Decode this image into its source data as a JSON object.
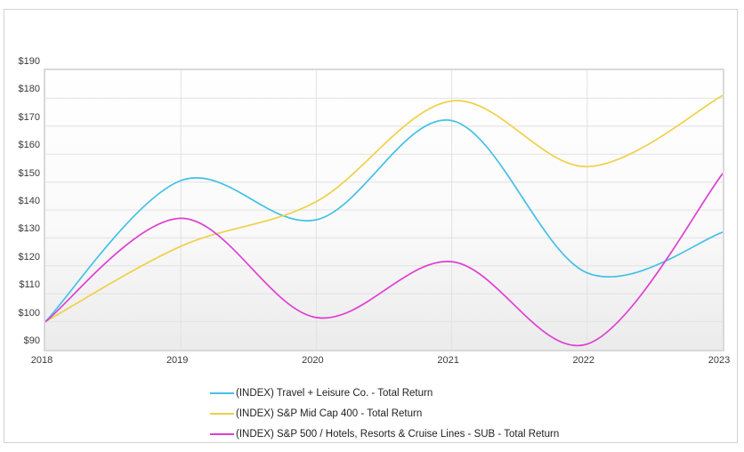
{
  "chart_data": {
    "type": "line",
    "x": [
      2018,
      2019,
      2020,
      2021,
      2022,
      2023
    ],
    "series": [
      {
        "name": "(INDEX) Travel + Leisure Co. - Total Return",
        "color": "#43C1E6",
        "values": [
          100,
          150.5,
          136.5,
          172,
          117.5,
          132
        ]
      },
      {
        "name": "(INDEX) S&P Mid Cap 400 - Total Return",
        "color": "#F0D04A",
        "values": [
          100,
          127,
          143,
          179,
          155.5,
          181
        ]
      },
      {
        "name": "(INDEX) S&P 500 / Hotels, Resorts & Cruise Lines - SUB - Total Return",
        "color": "#DE3FD3",
        "values": [
          100,
          137,
          101.5,
          121.5,
          92,
          153
        ]
      }
    ],
    "title": "",
    "xlabel": "",
    "ylabel": "",
    "ylim": [
      90,
      190
    ],
    "y_tick_step": 10,
    "grid": true,
    "legend_position": "bottom"
  },
  "axes": {
    "y_tick_labels": [
      "$90",
      "$100",
      "$110",
      "$120",
      "$130",
      "$140",
      "$150",
      "$160",
      "$170",
      "$180",
      "$190"
    ],
    "x_tick_labels": [
      "2018",
      "2019",
      "2020",
      "2021",
      "2022",
      "2023"
    ]
  },
  "legend": {
    "items": [
      "(INDEX) Travel + Leisure Co. - Total Return",
      "(INDEX) S&P Mid Cap 400 - Total Return",
      "(INDEX) S&P 500 / Hotels, Resorts & Cruise Lines - SUB - Total Return"
    ]
  },
  "colors": {
    "series_cyan": "#43C1E6",
    "series_yellow": "#F0D04A",
    "series_magenta": "#DE3FD3",
    "gridline": "#e2e2e2",
    "plot_border": "#d9d9d9",
    "frame_border": "#d2d2d2",
    "tick_text": "#3a3a3a"
  }
}
